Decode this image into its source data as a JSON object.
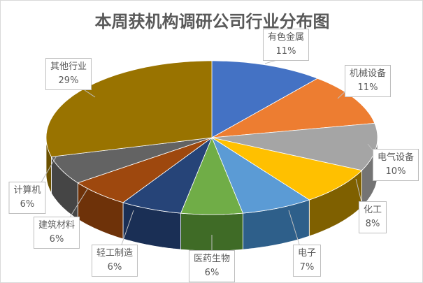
{
  "chart_data": {
    "type": "pie",
    "style": "3d",
    "title": "本周获机构调研公司行业分布图",
    "categories": [
      "有色金属",
      "机械设备",
      "电气设备",
      "化工",
      "电子",
      "医药生物",
      "轻工制造",
      "建筑材料",
      "计算机",
      "其他行业"
    ],
    "values": [
      11,
      11,
      10,
      8,
      7,
      6,
      6,
      6,
      6,
      29
    ],
    "labels": [
      "11%",
      "11%",
      "10%",
      "8%",
      "7%",
      "6%",
      "6%",
      "6%",
      "6%",
      "29%"
    ],
    "colors": [
      "#4472C4",
      "#ED7D31",
      "#A5A5A5",
      "#FFC000",
      "#5B9BD5",
      "#70AD47",
      "#264478",
      "#9E480E",
      "#636363",
      "#997300"
    ],
    "side_colors": [
      "#2F5597",
      "#A85820",
      "#747474",
      "#7F6000",
      "#2E5F8A",
      "#3F6B26",
      "#1A2F55",
      "#6E3209",
      "#454545",
      "#6B5100"
    ]
  }
}
